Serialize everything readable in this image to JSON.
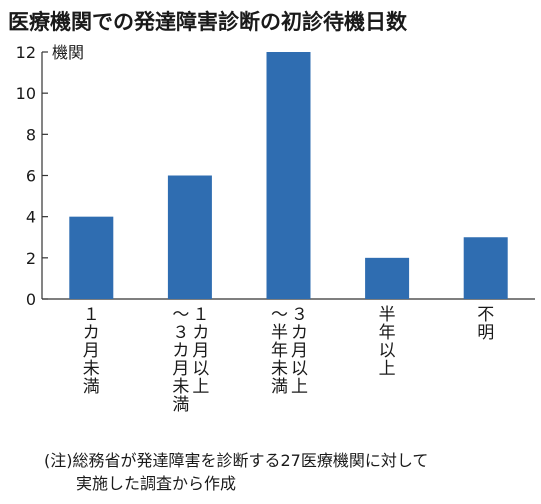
{
  "chart_data": {
    "type": "bar",
    "title": "医療機関での発達障害診断の初診待機日数",
    "unit_label": "機関",
    "categories": [
      "1カ月未満",
      "1～3カ月未満",
      "3カ月以上～半年未満",
      "半年以上",
      "不明"
    ],
    "category_label_lines": [
      [
        "１",
        "カ",
        "月",
        "未",
        "満"
      ],
      [
        "～",
        "３",
        "カ",
        "月",
        "未",
        "満"
      ],
      [
        "～",
        "半",
        "年",
        "未",
        "満"
      ],
      [
        "半",
        "年",
        "以",
        "上"
      ],
      [
        "不",
        "明"
      ]
    ],
    "category_label_secondary_lines": [
      [],
      [
        "１",
        "カ",
        "月",
        "以",
        "上"
      ],
      [
        "３",
        "カ",
        "月",
        "以",
        "上"
      ],
      [],
      []
    ],
    "values": [
      4,
      6,
      12,
      2,
      3
    ],
    "ylim": [
      0,
      12
    ],
    "yticks": [
      0,
      2,
      4,
      6,
      8,
      10,
      12
    ],
    "grid": false,
    "bar_color": "#2f6db1"
  },
  "footnote": {
    "line1": "(注)総務省が発達障害を診断する27医療機関に対して",
    "line2": "実施した調査から作成"
  }
}
